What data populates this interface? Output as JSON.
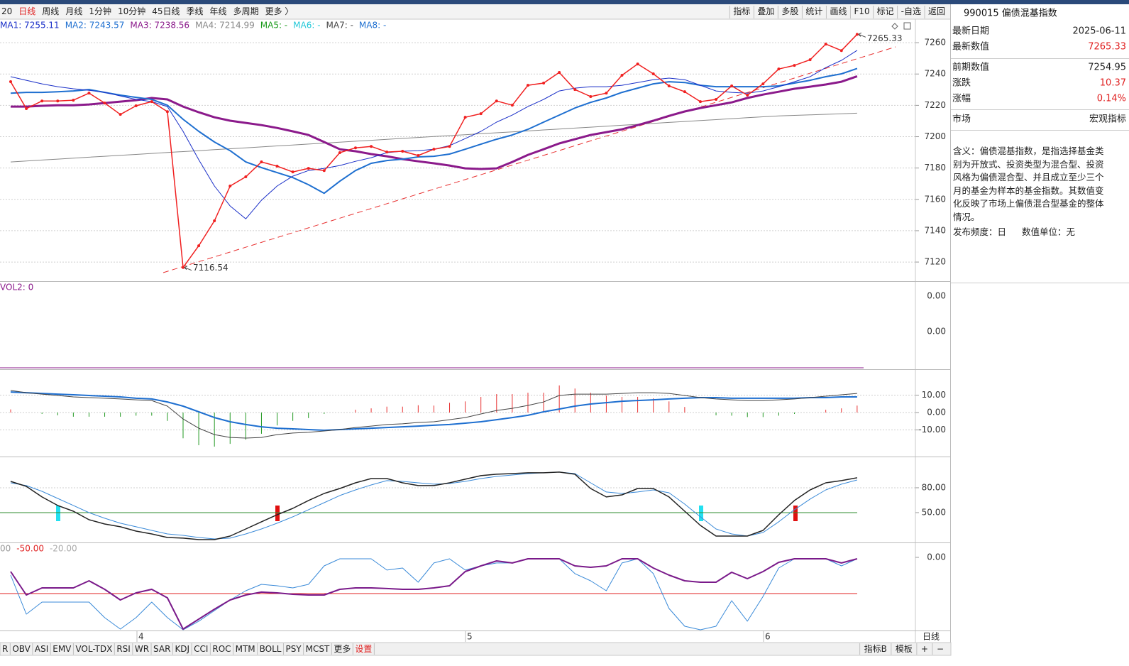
{
  "toolbar": {
    "left": [
      "20",
      "日线",
      "周线",
      "月线",
      "1分钟",
      "10分钟",
      "45日线",
      "季线",
      "年线",
      "多周期",
      "更多 〉"
    ],
    "active_index": 1,
    "right": [
      "指标",
      "叠加",
      "多股",
      "统计",
      "画线",
      "F10",
      "标记",
      "-自选",
      "返回"
    ]
  },
  "legend": [
    {
      "text": "MA1: 7255.11",
      "color": "#1a2fc8"
    },
    {
      "text": "MA2: 7243.57",
      "color": "#1e6fd0"
    },
    {
      "text": "MA3: 7238.56",
      "color": "#8b1a8b"
    },
    {
      "text": "MA4: 7214.99",
      "color": "#888888"
    },
    {
      "text": "MA5: -",
      "color": "#1a9a1a"
    },
    {
      "text": "MA6: -",
      "color": "#22c8d8"
    },
    {
      "text": "MA7: -",
      "color": "#444444"
    },
    {
      "text": "MA8: -",
      "color": "#1e6fd0"
    }
  ],
  "annotations": [
    "7265.33",
    "7116.54"
  ],
  "chart_data": [
    {
      "type": "line",
      "ylim": [
        7107.8,
        7275
      ],
      "yticks": [
        7260,
        7240,
        7220,
        7200,
        7180,
        7160,
        7140,
        7120
      ],
      "grid": true,
      "series": [
        {
          "color": "#888888",
          "width": 1,
          "values": [
            7183.9,
            7184.5,
            7185.1,
            7185.7,
            7186.3,
            7186.9,
            7187.5,
            7188.1,
            7188.7,
            7189.3,
            7189.9,
            7190.5,
            7191.1,
            7191.7,
            7192.3,
            7192.9,
            7193.5,
            7194.1,
            7194.7,
            7195.3,
            7195.9,
            7196.5,
            7197.1,
            7197.7,
            7198.3,
            7198.9,
            7199.5,
            7200.1,
            7200.7,
            7201.3,
            7201.9,
            7202.5,
            7203.1,
            7203.7,
            7204.3,
            7204.9,
            7205.5,
            7206.1,
            7206.7,
            7207.3,
            7207.9,
            7208.5,
            7209.1,
            7209.7,
            7210.3,
            7210.9,
            7211.5,
            7212.1,
            7212.7,
            7213.3,
            7213.6,
            7213.9,
            7214.3,
            7214.6,
            7214.99
          ]
        },
        {
          "color": "#8b1a8b",
          "width": 3,
          "values": [
            7219.2,
            7219.2,
            7219.7,
            7220.1,
            7220.1,
            7220.6,
            7221.5,
            7222.4,
            7223.3,
            7224.7,
            7223.8,
            7219.2,
            7215.6,
            7212.4,
            7210.2,
            7208.8,
            7207.4,
            7205.6,
            7203.4,
            7201.1,
            7196.6,
            7192.0,
            7190.7,
            7188.9,
            7187.5,
            7185.7,
            7184.3,
            7183.0,
            7181.6,
            7179.8,
            7179.4,
            7179.8,
            7183.9,
            7188.4,
            7192.0,
            7195.7,
            7198.4,
            7201.1,
            7202.9,
            7204.7,
            7207.4,
            7210.2,
            7213.3,
            7216.1,
            7218.3,
            7220.1,
            7221.9,
            7224.7,
            7226.9,
            7228.7,
            7230.6,
            7231.9,
            7233.3,
            7235.1,
            7238.56
          ]
        },
        {
          "color": "#1e6fd0",
          "width": 2,
          "values": [
            7227.8,
            7228.3,
            7228.3,
            7228.7,
            7229.2,
            7230.1,
            7228.3,
            7226.5,
            7225.1,
            7223.8,
            7220.1,
            7211.1,
            7203.4,
            7196.6,
            7191.1,
            7183.9,
            7180.3,
            7177.1,
            7173.9,
            7169.4,
            7163.9,
            7171.6,
            7178.4,
            7183.0,
            7184.8,
            7185.7,
            7187.1,
            7187.5,
            7188.9,
            7192.0,
            7195.2,
            7198.4,
            7201.1,
            7204.7,
            7209.3,
            7213.8,
            7218.3,
            7221.9,
            7224.7,
            7228.3,
            7231.0,
            7233.7,
            7235.1,
            7234.6,
            7232.8,
            7231.9,
            7231.9,
            7231.9,
            7231.9,
            7232.4,
            7234.2,
            7236.0,
            7238.3,
            7240.1,
            7243.57
          ]
        },
        {
          "color": "#1a2fc8",
          "width": 1,
          "values": [
            7238.3,
            7236.0,
            7233.7,
            7231.9,
            7230.6,
            7229.6,
            7228.3,
            7226.0,
            7223.8,
            7222.4,
            7219.2,
            7203.4,
            7185.3,
            7168.5,
            7155.8,
            7147.6,
            7159.4,
            7168.5,
            7174.8,
            7178.4,
            7179.8,
            7181.6,
            7184.3,
            7186.6,
            7189.8,
            7190.7,
            7191.1,
            7192.0,
            7194.3,
            7198.8,
            7203.4,
            7209.3,
            7213.8,
            7219.2,
            7223.8,
            7229.2,
            7231.0,
            7231.9,
            7231.9,
            7232.8,
            7234.6,
            7236.4,
            7237.4,
            7236.4,
            7232.8,
            7229.2,
            7228.3,
            7227.8,
            7229.2,
            7231.9,
            7235.1,
            7238.3,
            7244.1,
            7248.7,
            7255.11
          ]
        },
        {
          "color": "#f02020",
          "width": 1.5,
          "markers": true,
          "values": [
            7235.1,
            7217.9,
            7222.8,
            7222.8,
            7223.3,
            7227.8,
            7221.5,
            7214.2,
            7219.7,
            7222.4,
            7216.0,
            7116.54,
            7130.4,
            7146.3,
            7168.5,
            7174.4,
            7183.9,
            7181.2,
            7177.5,
            7179.8,
            7178.4,
            7189.8,
            7192.9,
            7193.8,
            7190.2,
            7190.7,
            7188.0,
            7192.0,
            7193.8,
            7212.4,
            7214.7,
            7222.8,
            7220.1,
            7232.8,
            7234.2,
            7241.0,
            7230.1,
            7225.6,
            7227.8,
            7239.2,
            7246.4,
            7240.1,
            7232.4,
            7228.7,
            7222.4,
            7223.8,
            7232.4,
            7226.5,
            7233.7,
            7243.2,
            7245.5,
            7249.1,
            7259.1,
            7254.95,
            7265.33
          ]
        }
      ]
    },
    {
      "type": "volume",
      "title": "VOL2: 0",
      "tick_labels": [
        "0.00",
        "0.00"
      ],
      "color": "#8b1a8b"
    },
    {
      "type": "line",
      "ylim": [
        -25.3,
        24.5
      ],
      "yticks": [
        {
          "value": 10,
          "label": "10.00"
        },
        {
          "value": 0,
          "label": "0.00"
        },
        {
          "value": -10,
          "label": "-10.00"
        }
      ],
      "grid": true,
      "histogram": {
        "up_color": "#e83030",
        "down_color": "#229922",
        "values": [
          1.8,
          0,
          -0.8,
          -1.6,
          -2.4,
          -2.4,
          -2.4,
          -2.4,
          -1.8,
          -1.8,
          -4.8,
          -14.8,
          -18.8,
          -19.6,
          -18.0,
          -15.6,
          -12.2,
          -7.4,
          -4.8,
          -3.2,
          -0.8,
          0,
          1.6,
          2.4,
          3.4,
          3.4,
          4.2,
          4.0,
          5.6,
          6.4,
          9.0,
          10.6,
          10.6,
          11.4,
          11.4,
          15.6,
          13.8,
          11.4,
          9.8,
          9.0,
          9.0,
          8.2,
          6.4,
          3.2,
          0,
          -1.6,
          -1.8,
          -2.6,
          -2.6,
          -1.8,
          -0.8,
          0,
          1.6,
          2.4,
          4.0
        ]
      },
      "series": [
        {
          "color": "#1e6fd0",
          "width": 2,
          "values": [
            11.8,
            11.4,
            11.0,
            10.6,
            10.2,
            9.8,
            9.4,
            9.0,
            8.2,
            7.8,
            6.1,
            3.7,
            0.4,
            -2.9,
            -5.3,
            -6.9,
            -8.2,
            -9.0,
            -9.4,
            -9.8,
            -10.2,
            -9.8,
            -9.4,
            -9.0,
            -8.6,
            -8.2,
            -7.8,
            -7.3,
            -6.9,
            -6.1,
            -5.3,
            -4.1,
            -2.9,
            -1.6,
            0.4,
            2.0,
            3.7,
            4.9,
            5.7,
            6.5,
            6.9,
            7.3,
            7.8,
            8.2,
            8.6,
            8.6,
            8.2,
            8.2,
            8.2,
            8.2,
            8.2,
            8.6,
            8.6,
            9.0,
            9.0
          ]
        },
        {
          "color": "#444444",
          "width": 1,
          "values": [
            12.7,
            11.4,
            10.6,
            9.8,
            9.0,
            8.6,
            8.2,
            7.8,
            7.3,
            6.9,
            3.7,
            -3.7,
            -9.0,
            -12.7,
            -14.3,
            -14.7,
            -14.3,
            -12.7,
            -11.8,
            -11.4,
            -10.6,
            -9.8,
            -8.6,
            -7.8,
            -6.9,
            -6.5,
            -5.7,
            -5.3,
            -4.1,
            -2.9,
            -0.8,
            1.2,
            2.4,
            4.1,
            6.1,
            9.8,
            10.6,
            10.6,
            10.6,
            11.0,
            11.4,
            11.4,
            11.0,
            9.8,
            8.6,
            7.8,
            7.3,
            6.9,
            6.9,
            7.3,
            7.8,
            8.6,
            9.4,
            10.2,
            11.0
          ]
        }
      ]
    },
    {
      "type": "line",
      "ylim": [
        14,
        116.8
      ],
      "yticks": [
        {
          "value": 80,
          "label": "80.00"
        },
        {
          "value": 50,
          "label": "50.00"
        }
      ],
      "grid": true,
      "hline": {
        "value": 50,
        "color": "#2e8b2e"
      },
      "series": [
        {
          "color": "#3a8ad8",
          "width": 1,
          "values": [
            86.0,
            82.6,
            75.7,
            67.1,
            58.6,
            50.0,
            43.2,
            37.2,
            32.9,
            28.6,
            24.3,
            22.6,
            20.0,
            18.3,
            19.2,
            24.3,
            30.3,
            37.2,
            44.9,
            53.5,
            62.0,
            70.6,
            77.4,
            83.4,
            88.6,
            87.7,
            86.0,
            84.3,
            85.1,
            87.7,
            91.1,
            93.7,
            95.4,
            97.1,
            98.0,
            98.9,
            97.1,
            86.0,
            74.9,
            73.1,
            74.9,
            77.4,
            74.0,
            60.3,
            44.9,
            30.3,
            24.3,
            21.7,
            26.0,
            38.9,
            53.5,
            66.3,
            77.4,
            84.3,
            89.4
          ]
        },
        {
          "color": "#222222",
          "width": 1.5,
          "values": [
            87.7,
            81.7,
            68.9,
            58.6,
            51.7,
            41.4,
            36.3,
            32.9,
            27.7,
            24.3,
            20.0,
            19.2,
            17.4,
            17.4,
            21.7,
            30.3,
            38.9,
            47.4,
            55.1,
            64.6,
            73.1,
            79.1,
            86.0,
            91.1,
            91.1,
            86.0,
            82.6,
            82.6,
            86.0,
            90.3,
            94.6,
            96.3,
            97.1,
            98.0,
            98.0,
            98.9,
            96.3,
            79.1,
            68.9,
            71.4,
            79.1,
            79.1,
            68.9,
            51.7,
            34.6,
            21.7,
            21.7,
            21.7,
            28.6,
            47.4,
            64.6,
            77.4,
            86.0,
            88.6,
            92.0
          ]
        }
      ]
    },
    {
      "type": "line",
      "header": [
        {
          "text": "00",
          "color": "#999999"
        },
        {
          "text": "-50.00",
          "color": "#e02020"
        },
        {
          "text": "-20.00",
          "color": "#aaaaaa"
        }
      ],
      "ylim": [
        -101,
        19.6
      ],
      "yticks": [
        {
          "value": 0,
          "label": "0.00"
        }
      ],
      "grid": false,
      "hline": {
        "value": -50,
        "color": "#e02020"
      },
      "series": [
        {
          "color": "#3a8ad8",
          "width": 1,
          "values": [
            -24.5,
            -78.4,
            -61.8,
            -61.8,
            -61.8,
            -61.8,
            -83.3,
            -99.0,
            -83.3,
            -61.8,
            -83.3,
            -100.0,
            -88.2,
            -73.5,
            -58.8,
            -46.1,
            -37.3,
            -39.2,
            -42.2,
            -37.3,
            -11.8,
            -2.0,
            -2.0,
            -2.0,
            -17.6,
            -14.7,
            -34.3,
            -7.8,
            -2.0,
            -17.6,
            -11.8,
            -7.8,
            -7.8,
            -2.0,
            -2.0,
            -2.0,
            -22.5,
            -32.4,
            -46.1,
            -7.8,
            -2.0,
            -22.5,
            -70.6,
            -95.1,
            -100.0,
            -95.1,
            -59.8,
            -88.2,
            -53.9,
            -14.7,
            -2.0,
            -2.0,
            -2.0,
            -11.8,
            -2.0
          ]
        },
        {
          "color": "#7a1a8a",
          "width": 2,
          "values": [
            -19.6,
            -52.0,
            -42.2,
            -42.2,
            -42.2,
            -32.4,
            -44.1,
            -58.8,
            -49.0,
            -44.1,
            -55.9,
            -99.0,
            -85.3,
            -71.6,
            -58.8,
            -52.0,
            -48.0,
            -49.0,
            -51.0,
            -52.0,
            -52.0,
            -44.1,
            -42.2,
            -42.2,
            -43.1,
            -44.1,
            -44.1,
            -42.2,
            -39.2,
            -19.6,
            -11.8,
            -4.9,
            -7.8,
            -2.0,
            -2.0,
            -2.0,
            -11.8,
            -13.7,
            -11.8,
            -2.0,
            -2.0,
            -14.7,
            -24.5,
            -32.4,
            -34.3,
            -34.3,
            -20.6,
            -29.4,
            -19.6,
            -6.9,
            -2.0,
            -2.0,
            -2.0,
            -7.8,
            -2.0
          ]
        }
      ]
    }
  ],
  "x_labels": [
    "4",
    "5",
    "6"
  ],
  "period_label": "日线",
  "tabs": [
    "R",
    "OBV",
    "ASI",
    "EMV",
    "VOL-TDX",
    "RSI",
    "WR",
    "SAR",
    "KDJ",
    "CCI",
    "ROC",
    "MTM",
    "BOLL",
    "PSY",
    "MCST",
    "更多",
    "设置"
  ],
  "tabs_right": [
    "指标B",
    "模板",
    "+",
    "−"
  ],
  "info": {
    "title": "990015 偏债混基指数",
    "rows": [
      [
        "最新日期",
        "2025-06-11"
      ],
      [
        "最新数值",
        "7265.33"
      ],
      [
        "前期数值",
        "7254.95"
      ],
      [
        "涨跌",
        "10.37"
      ],
      [
        "涨幅",
        "0.14%"
      ],
      [
        "市场",
        "宏观指标"
      ]
    ],
    "red_rows": [
      1,
      3,
      4
    ],
    "description": "含义：偏债混基指数，是指选择基金类别为开放式、投资类型为混合型、投资风格为偏债混合型、并且成立至少三个月的基金为样本的基金指数。其数值变化反映了市场上偏债混合型基金的整体情况。",
    "footer": [
      "发布频度：日",
      "数值单位：无"
    ]
  }
}
